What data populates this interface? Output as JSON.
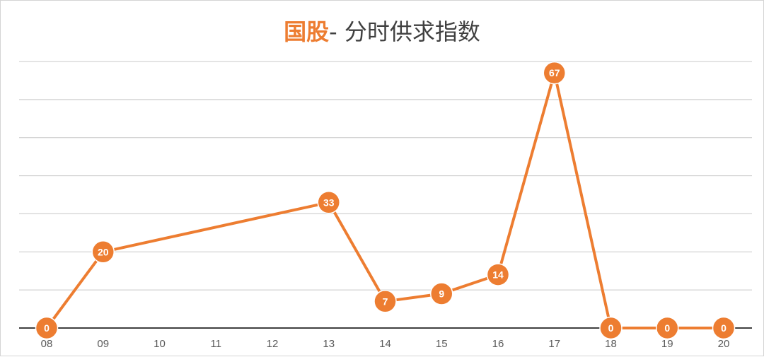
{
  "chart_data": {
    "type": "line",
    "title_accent": "国股",
    "title_rest": "- 分时供求指数",
    "categories": [
      "08",
      "09",
      "10",
      "11",
      "12",
      "13",
      "14",
      "15",
      "16",
      "17",
      "18",
      "19",
      "20"
    ],
    "series": [
      {
        "points": [
          {
            "x": "08",
            "y": 0
          },
          {
            "x": "09",
            "y": 20
          },
          {
            "x": "13",
            "y": 33
          },
          {
            "x": "14",
            "y": 7
          },
          {
            "x": "15",
            "y": 9
          },
          {
            "x": "16",
            "y": 14
          },
          {
            "x": "17",
            "y": 67
          },
          {
            "x": "18",
            "y": 0
          },
          {
            "x": "19",
            "y": 0
          },
          {
            "x": "20",
            "y": 0
          }
        ]
      }
    ],
    "ylim": [
      0,
      70
    ],
    "y_gridline_step": 10,
    "grid": true,
    "legend": "none",
    "colors": {
      "line": "#ed7d31",
      "marker": "#ed7d31",
      "marker_text": "#ffffff",
      "gridline": "#c8c8c8",
      "axis": "#404040",
      "tick_text": "#595959"
    }
  }
}
